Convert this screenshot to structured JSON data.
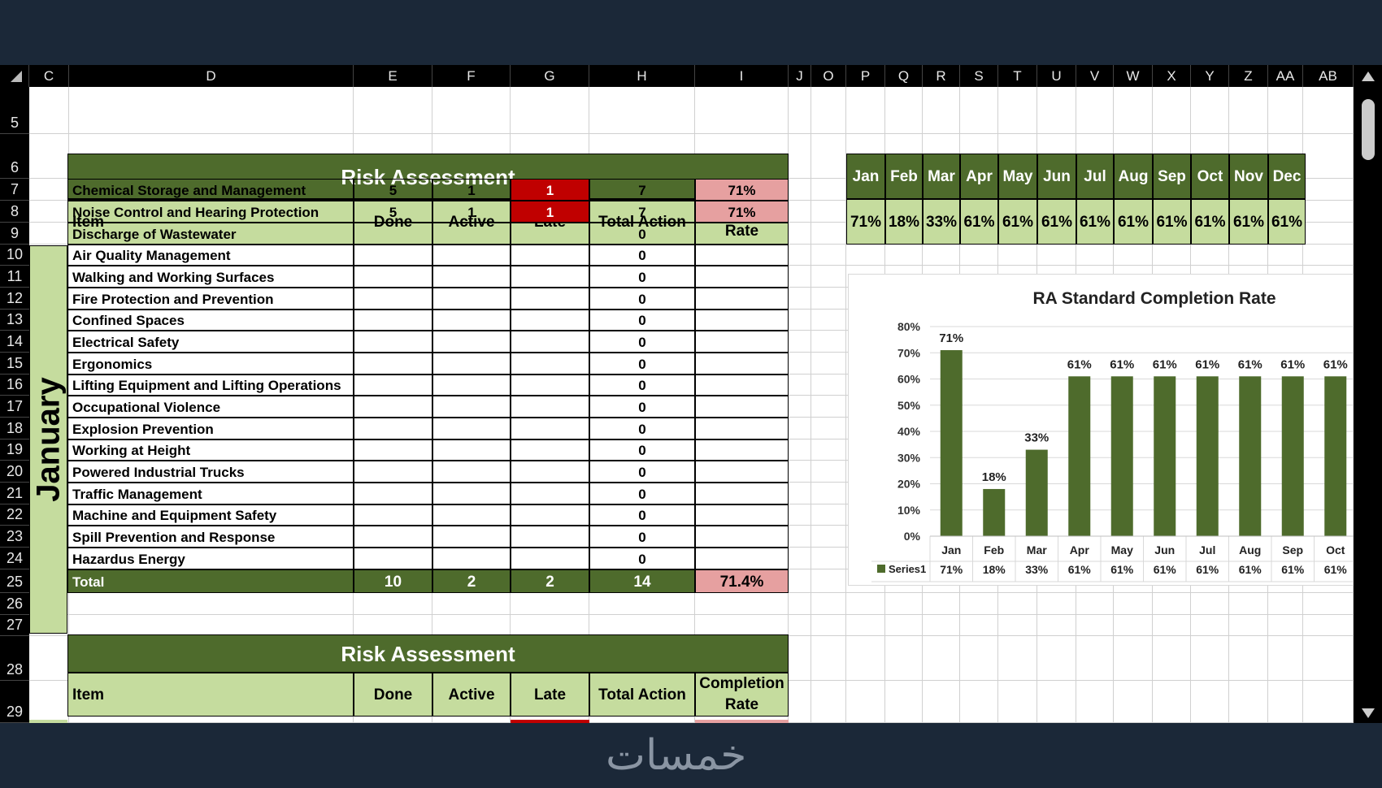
{
  "columns": [
    "C",
    "D",
    "E",
    "F",
    "G",
    "H",
    "I",
    "J",
    "O",
    "P",
    "Q",
    "R",
    "S",
    "T",
    "U",
    "V",
    "W",
    "X",
    "Y",
    "Z",
    "AA",
    "AB"
  ],
  "rows": [
    "5",
    "6",
    "7",
    "8",
    "9",
    "10",
    "11",
    "12",
    "13",
    "14",
    "15",
    "16",
    "17",
    "18",
    "19",
    "20",
    "21",
    "22",
    "23",
    "24",
    "25",
    "26",
    "27",
    "28",
    "29"
  ],
  "table1": {
    "title": "Risk Assessment",
    "headers": {
      "item": "Item",
      "done": "Done",
      "active": "Active",
      "late": "Late",
      "total": "Total Action",
      "completion": "Completion Rate"
    },
    "month": "January",
    "items": [
      {
        "name": "Chemical Storage and Management",
        "done": "5",
        "active": "1",
        "late": "1",
        "total": "7",
        "rate": "71%"
      },
      {
        "name": "Noise Control and Hearing Protection",
        "done": "5",
        "active": "1",
        "late": "1",
        "total": "7",
        "rate": "71%"
      },
      {
        "name": "Discharge of Wastewater",
        "done": "",
        "active": "",
        "late": "",
        "total": "0",
        "rate": ""
      },
      {
        "name": "Air Quality Management",
        "done": "",
        "active": "",
        "late": "",
        "total": "0",
        "rate": ""
      },
      {
        "name": "Walking and Working Surfaces",
        "done": "",
        "active": "",
        "late": "",
        "total": "0",
        "rate": ""
      },
      {
        "name": "Fire Protection and Prevention",
        "done": "",
        "active": "",
        "late": "",
        "total": "0",
        "rate": ""
      },
      {
        "name": "Confined Spaces",
        "done": "",
        "active": "",
        "late": "",
        "total": "0",
        "rate": ""
      },
      {
        "name": "Electrical Safety",
        "done": "",
        "active": "",
        "late": "",
        "total": "0",
        "rate": ""
      },
      {
        "name": "Ergonomics",
        "done": "",
        "active": "",
        "late": "",
        "total": "0",
        "rate": ""
      },
      {
        "name": "Lifting Equipment and Lifting Operations",
        "done": "",
        "active": "",
        "late": "",
        "total": "0",
        "rate": ""
      },
      {
        "name": "Occupational Violence",
        "done": "",
        "active": "",
        "late": "",
        "total": "0",
        "rate": ""
      },
      {
        "name": "Explosion Prevention",
        "done": "",
        "active": "",
        "late": "",
        "total": "0",
        "rate": ""
      },
      {
        "name": "Working at Height",
        "done": "",
        "active": "",
        "late": "",
        "total": "0",
        "rate": ""
      },
      {
        "name": "Powered Industrial Trucks",
        "done": "",
        "active": "",
        "late": "",
        "total": "0",
        "rate": ""
      },
      {
        "name": "Traffic Management",
        "done": "",
        "active": "",
        "late": "",
        "total": "0",
        "rate": ""
      },
      {
        "name": "Machine and Equipment Safety",
        "done": "",
        "active": "",
        "late": "",
        "total": "0",
        "rate": ""
      },
      {
        "name": "Spill Prevention and Response",
        "done": "",
        "active": "",
        "late": "",
        "total": "0",
        "rate": ""
      },
      {
        "name": "Hazardus Energy",
        "done": "",
        "active": "",
        "late": "",
        "total": "0",
        "rate": ""
      }
    ],
    "total": {
      "label": "Total",
      "done": "10",
      "active": "2",
      "late": "2",
      "total": "14",
      "rate": "71.4%"
    }
  },
  "table2": {
    "title": "Risk Assessment",
    "headers": {
      "item": "Item",
      "done": "Done",
      "active": "Active",
      "late": "Late",
      "total": "Total Action",
      "completion": "Completion Rate"
    }
  },
  "summary": {
    "months": [
      "Jan",
      "Feb",
      "Mar",
      "Apr",
      "May",
      "Jun",
      "Jul",
      "Aug",
      "Sep",
      "Oct",
      "Nov",
      "Dec"
    ],
    "rates": [
      "71%",
      "18%",
      "33%",
      "61%",
      "61%",
      "61%",
      "61%",
      "61%",
      "61%",
      "61%",
      "61%",
      "61%"
    ]
  },
  "chart_data": {
    "type": "bar",
    "title": "RA Standard Completion Rate",
    "categories": [
      "Jan",
      "Feb",
      "Mar",
      "Apr",
      "May",
      "Jun",
      "Jul",
      "Aug",
      "Sep",
      "Oct"
    ],
    "series": [
      {
        "name": "Series1",
        "values": [
          0.71,
          0.18,
          0.33,
          0.61,
          0.61,
          0.61,
          0.61,
          0.61,
          0.61,
          0.61
        ]
      }
    ],
    "data_labels": [
      "71%",
      "18%",
      "33%",
      "61%",
      "61%",
      "61%",
      "61%",
      "61%",
      "61%",
      "61%"
    ],
    "y_ticks": [
      "0%",
      "10%",
      "20%",
      "30%",
      "40%",
      "50%",
      "60%",
      "70%",
      "80%"
    ],
    "ylim": [
      0,
      0.8
    ],
    "grid": true,
    "legend": "data-table-bottom",
    "colors": {
      "bar": "#4e6b2c"
    }
  },
  "colors": {
    "dark_green": "#4e6b2c",
    "light_green": "#c5dc9e",
    "late_red": "#c00000",
    "rate_pink": "#e6a0a0"
  },
  "watermark": "خمسات"
}
